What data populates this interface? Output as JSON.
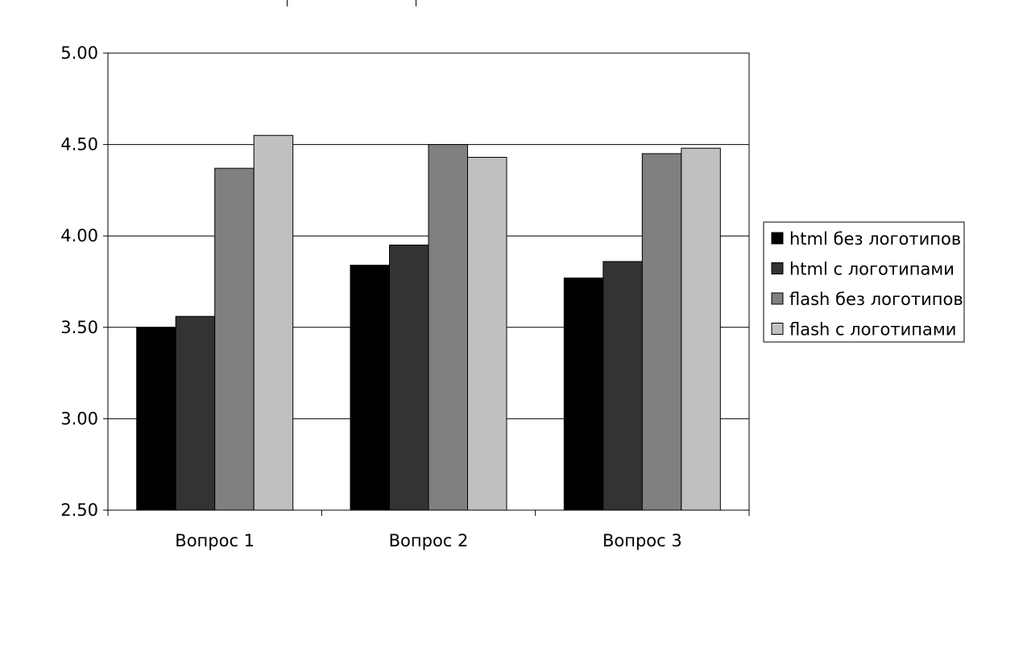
{
  "chart_data": {
    "type": "bar",
    "categories": [
      "Вопрос 1",
      "Вопрос 2",
      "Вопрос 3"
    ],
    "series": [
      {
        "name": "html без логотипов",
        "values": [
          3.5,
          3.84,
          3.77
        ],
        "color": "#000000"
      },
      {
        "name": "html с логотипами",
        "values": [
          3.56,
          3.95,
          3.86
        ],
        "color": "#333333"
      },
      {
        "name": "flash без логотипов",
        "values": [
          4.37,
          4.5,
          4.45
        ],
        "color": "#808080"
      },
      {
        "name": "flash с логотипами",
        "values": [
          4.55,
          4.43,
          4.48
        ],
        "color": "#c0c0c0"
      }
    ],
    "title": "",
    "xlabel": "",
    "ylabel": "",
    "ylim": [
      2.5,
      5.0
    ],
    "yticks": [
      "2.50",
      "3.00",
      "3.50",
      "4.00",
      "4.50",
      "5.00"
    ],
    "grid": true,
    "legend_position": "right"
  }
}
